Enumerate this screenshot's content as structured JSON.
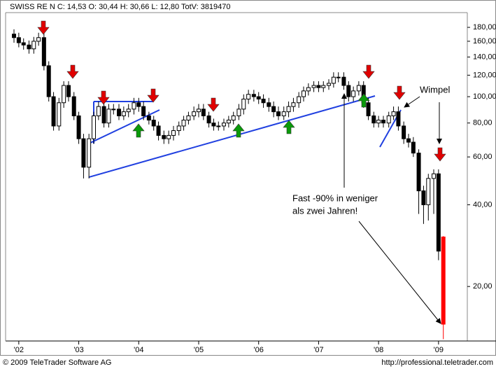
{
  "chart_data": {
    "type": "candlestick",
    "title": "SWISS RE N C: 14,53 O: 30,44 H: 30,66 L: 12,80 TotV: 3819470",
    "annotations": [
      "Wimpel",
      "Fast -90% in weniger",
      "als zwei Jahren!"
    ],
    "footer_left": "© 2009 TeleTrader Software AG",
    "footer_right": "http://professional.teletrader.com",
    "log_scale": true,
    "colors": {
      "up": "#ffffff",
      "down": "#000000",
      "last": "#ff0000",
      "outline": "#000000"
    },
    "x": [
      2001.92,
      2002.0,
      2002.08,
      2002.17,
      2002.25,
      2002.33,
      2002.42,
      2002.5,
      2002.58,
      2002.67,
      2002.75,
      2002.83,
      2002.92,
      2003.0,
      2003.08,
      2003.17,
      2003.25,
      2003.33,
      2003.42,
      2003.5,
      2003.58,
      2003.67,
      2003.75,
      2003.83,
      2003.92,
      2004.0,
      2004.08,
      2004.17,
      2004.25,
      2004.33,
      2004.42,
      2004.5,
      2004.58,
      2004.67,
      2004.75,
      2004.83,
      2004.92,
      2005.0,
      2005.08,
      2005.17,
      2005.25,
      2005.33,
      2005.42,
      2005.5,
      2005.58,
      2005.67,
      2005.75,
      2005.83,
      2005.92,
      2006.0,
      2006.08,
      2006.17,
      2006.25,
      2006.33,
      2006.42,
      2006.5,
      2006.58,
      2006.67,
      2006.75,
      2006.83,
      2006.92,
      2007.0,
      2007.08,
      2007.17,
      2007.25,
      2007.33,
      2007.42,
      2007.5,
      2007.58,
      2007.67,
      2007.75,
      2007.83,
      2007.92,
      2008.0,
      2008.08,
      2008.17,
      2008.25,
      2008.33,
      2008.42,
      2008.5,
      2008.58,
      2008.67,
      2008.75,
      2008.83,
      2008.92,
      2009.0,
      2009.08
    ],
    "open": [
      170,
      165,
      158,
      155,
      150,
      160,
      165,
      130,
      100,
      78,
      95,
      110,
      100,
      85,
      70,
      55,
      70,
      85,
      92,
      80,
      90,
      90,
      85,
      88,
      90,
      95,
      92,
      85,
      82,
      78,
      72,
      70,
      72,
      75,
      78,
      82,
      85,
      88,
      90,
      85,
      80,
      78,
      78,
      80,
      82,
      85,
      90,
      98,
      102,
      100,
      98,
      95,
      92,
      88,
      85,
      88,
      92,
      95,
      100,
      105,
      108,
      110,
      108,
      110,
      112,
      118,
      118,
      110,
      100,
      105,
      110,
      95,
      85,
      80,
      82,
      80,
      85,
      88,
      78,
      70,
      68,
      62,
      45,
      40,
      50,
      52,
      30.44
    ],
    "high": [
      177,
      172,
      164,
      161,
      166,
      172,
      172,
      135,
      104,
      99,
      114,
      114,
      104,
      88,
      73,
      73,
      88,
      96,
      96,
      94,
      94,
      94,
      92,
      94,
      99,
      99,
      96,
      88,
      85,
      81,
      75,
      75,
      78,
      81,
      85,
      88,
      92,
      94,
      94,
      88,
      83,
      81,
      83,
      85,
      88,
      94,
      102,
      106,
      106,
      104,
      102,
      99,
      96,
      92,
      92,
      96,
      99,
      104,
      109,
      112,
      114,
      114,
      114,
      116,
      123,
      123,
      123,
      114,
      109,
      114,
      114,
      99,
      88,
      85,
      85,
      88,
      92,
      92,
      81,
      73,
      71,
      64,
      47,
      52,
      54,
      54,
      30.66
    ],
    "low": [
      158,
      152,
      149,
      144,
      144,
      154,
      125,
      96,
      75,
      75,
      91,
      96,
      82,
      67,
      50,
      50,
      67,
      82,
      77,
      77,
      86,
      82,
      82,
      84,
      86,
      88,
      82,
      79,
      75,
      69,
      67,
      67,
      69,
      72,
      75,
      79,
      82,
      84,
      82,
      77,
      75,
      75,
      75,
      77,
      79,
      82,
      86,
      94,
      96,
      94,
      91,
      88,
      84,
      82,
      82,
      84,
      88,
      91,
      96,
      101,
      104,
      104,
      104,
      106,
      108,
      113,
      106,
      96,
      96,
      101,
      91,
      82,
      77,
      77,
      77,
      77,
      82,
      75,
      67,
      65,
      60,
      37,
      34,
      35,
      37,
      25,
      12.8
    ],
    "close": [
      165,
      158,
      155,
      150,
      160,
      165,
      130,
      100,
      78,
      95,
      110,
      100,
      85,
      70,
      55,
      70,
      85,
      92,
      80,
      90,
      90,
      85,
      88,
      90,
      95,
      92,
      85,
      82,
      78,
      72,
      70,
      72,
      75,
      78,
      82,
      85,
      88,
      90,
      85,
      80,
      78,
      78,
      80,
      82,
      85,
      90,
      98,
      102,
      100,
      98,
      95,
      92,
      88,
      85,
      88,
      92,
      95,
      100,
      105,
      108,
      110,
      108,
      110,
      112,
      118,
      118,
      110,
      100,
      105,
      110,
      95,
      85,
      80,
      82,
      80,
      85,
      88,
      78,
      70,
      68,
      62,
      45,
      40,
      50,
      52,
      27,
      14.53
    ],
    "xlim": [
      2001.78,
      2009.48
    ],
    "xticks": [
      {
        "value": 2002,
        "label": "'02"
      },
      {
        "value": 2003,
        "label": "'03"
      },
      {
        "value": 2004,
        "label": "'04"
      },
      {
        "value": 2005,
        "label": "'05"
      },
      {
        "value": 2006,
        "label": "'06"
      },
      {
        "value": 2007,
        "label": "'07"
      },
      {
        "value": 2008,
        "label": "'08"
      },
      {
        "value": 2009,
        "label": "'09"
      }
    ],
    "ylim": [
      12.6,
      204
    ],
    "yticks": [
      {
        "value": 20,
        "label": "20,00"
      },
      {
        "value": 40,
        "label": "40,00"
      },
      {
        "value": 60,
        "label": "60,00"
      },
      {
        "value": 80,
        "label": "80,00"
      },
      {
        "value": 100,
        "label": "100,00"
      },
      {
        "value": 120,
        "label": "120,00"
      },
      {
        "value": 140,
        "label": "140,00"
      },
      {
        "value": 160,
        "label": "160,00"
      },
      {
        "value": 180,
        "label": "180,00"
      }
    ]
  }
}
